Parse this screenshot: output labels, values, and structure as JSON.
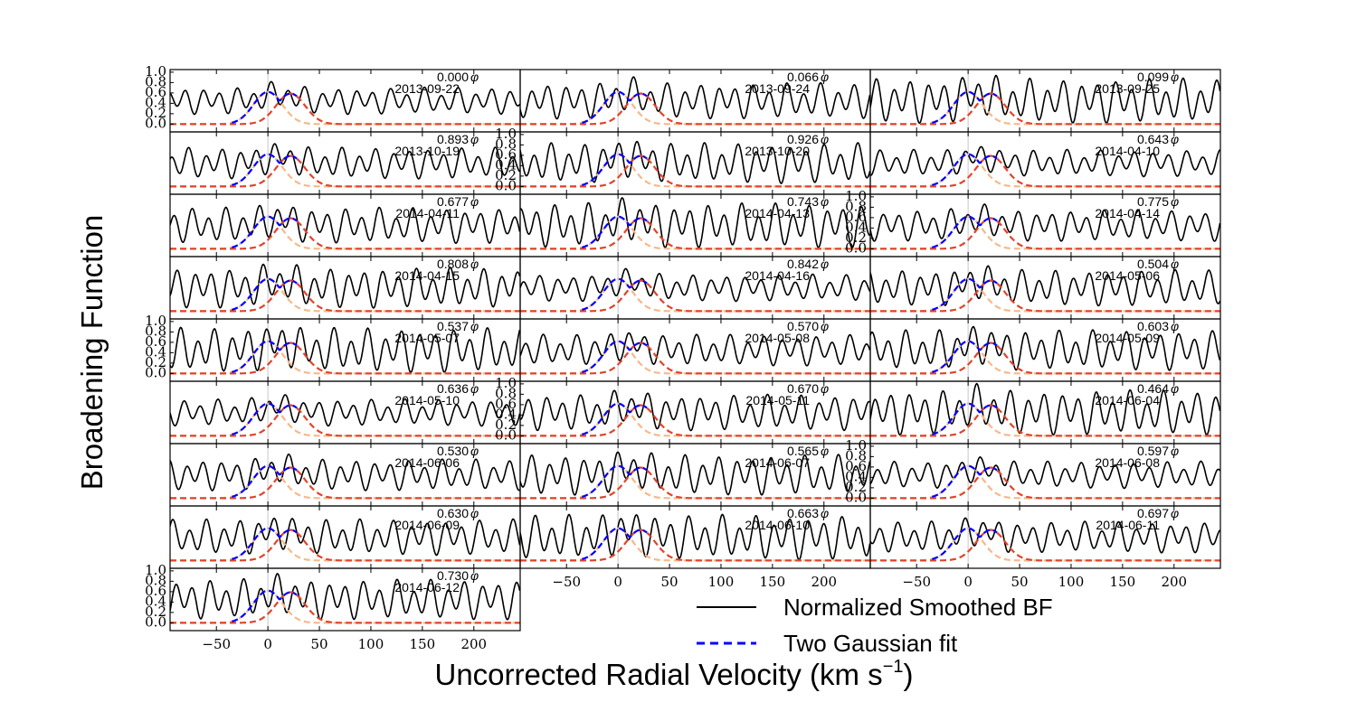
{
  "chart_data": {
    "type": "line",
    "ylabel": "Broadening Function",
    "xlabel": "Uncorrected Radial Velocity (km s",
    "xlabel_exp": "−1",
    "xlabel_close": ")",
    "xlim": [
      -95,
      245
    ],
    "ylim": [
      -0.15,
      1.05
    ],
    "xticks": [
      -50,
      0,
      50,
      100,
      150,
      200
    ],
    "yticks": [
      0.0,
      0.2,
      0.4,
      0.6,
      0.8,
      1.0
    ],
    "ytick_labels": [
      "0.0",
      "0.2",
      "0.4",
      "0.6",
      "0.8",
      "1.0"
    ],
    "phase_symbol": "φ",
    "panels": [
      {
        "phase": "0.000",
        "date": "2013-09-22"
      },
      {
        "phase": "0.066",
        "date": "2013-09-24"
      },
      {
        "phase": "0.099",
        "date": "2013-09-25"
      },
      {
        "phase": "0.893",
        "date": "2013-10-19"
      },
      {
        "phase": "0.926",
        "date": "2013-10-20"
      },
      {
        "phase": "0.643",
        "date": "2014-04-10"
      },
      {
        "phase": "0.677",
        "date": "2014-04-11"
      },
      {
        "phase": "0.743",
        "date": "2014-04-13"
      },
      {
        "phase": "0.775",
        "date": "2014-04-14"
      },
      {
        "phase": "0.808",
        "date": "2014-04-15"
      },
      {
        "phase": "0.842",
        "date": "2014-04-16"
      },
      {
        "phase": "0.504",
        "date": "2014-05-06"
      },
      {
        "phase": "0.537",
        "date": "2014-05-07"
      },
      {
        "phase": "0.570",
        "date": "2014-05-08"
      },
      {
        "phase": "0.603",
        "date": "2014-05-09"
      },
      {
        "phase": "0.636",
        "date": "2014-05-10"
      },
      {
        "phase": "0.670",
        "date": "2014-05-11"
      },
      {
        "phase": "0.464",
        "date": "2014-06-04"
      },
      {
        "phase": "0.530",
        "date": "2014-06-06"
      },
      {
        "phase": "0.565",
        "date": "2014-06-07"
      },
      {
        "phase": "0.597",
        "date": "2014-06-08"
      },
      {
        "phase": "0.630",
        "date": "2014-06-09"
      },
      {
        "phase": "0.663",
        "date": "2014-06-10"
      },
      {
        "phase": "0.697",
        "date": "2014-06-11"
      },
      {
        "phase": "0.730",
        "date": "2014-06-12"
      }
    ],
    "series": [
      {
        "name": "Normalized Smoothed BF",
        "color": "#000000",
        "style": "solid"
      },
      {
        "name": "Two Gaussian fit",
        "color": "#0000ff",
        "style": "dashed"
      },
      {
        "name": "",
        "color": "#f5b98a",
        "style": "dashed"
      },
      {
        "name": "",
        "color": "#e0442a",
        "style": "dashed"
      }
    ],
    "gaussian_fit": {
      "center1": 0,
      "center2": 22,
      "amplitude": 0.62,
      "baseline": 0.0
    },
    "grid": false,
    "legend_location": "lower center"
  }
}
